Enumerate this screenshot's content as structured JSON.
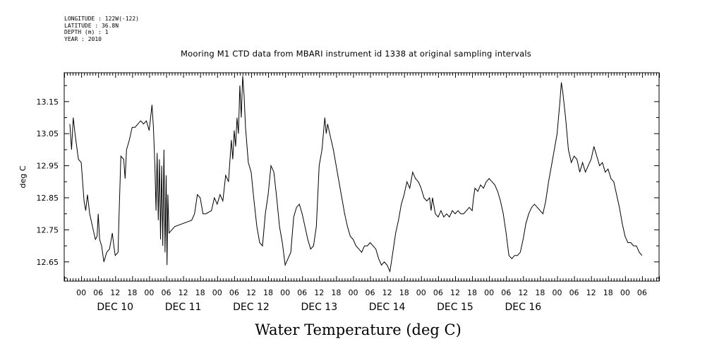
{
  "metadata": {
    "longitude": "LONGITUDE : 122W(-122)",
    "latitude": "LATITUDE : 36.8N",
    "depth": "DEPTH (m) : 1",
    "year": "YEAR : 2010"
  },
  "chart_data": {
    "type": "line",
    "title": "Mooring M1 CTD data from MBARI instrument id 1338 at original sampling intervals",
    "xlabel": "Water Temperature (deg C)",
    "ylabel": "deg C",
    "ylim": [
      12.59,
      13.24
    ],
    "xlim_hours": [
      -6,
      204
    ],
    "y_ticks": [
      12.65,
      12.75,
      12.85,
      12.95,
      13.05,
      13.15
    ],
    "y_tick_labels": [
      "12.65",
      "12.75",
      "12.85",
      "12.95",
      "13.05",
      "13.15"
    ],
    "hour_ticks": [
      "00",
      "06",
      "12",
      "18"
    ],
    "day_labels": [
      "DEC 10",
      "DEC 11",
      "DEC 12",
      "DEC 13",
      "DEC 14",
      "DEC 15",
      "DEC 16"
    ],
    "x_unit_note": "x = hours since 2010-12-10 00:00",
    "grid": false,
    "series": [
      {
        "color": "#000000",
        "points": [
          [
            -4.0,
            13.08
          ],
          [
            -3.4,
            13.0
          ],
          [
            -2.8,
            13.1
          ],
          [
            -2.2,
            13.05
          ],
          [
            -1.6,
            13.01
          ],
          [
            -1.0,
            12.97
          ],
          [
            0.0,
            12.96
          ],
          [
            1.0,
            12.84
          ],
          [
            1.6,
            12.81
          ],
          [
            2.2,
            12.86
          ],
          [
            3.0,
            12.8
          ],
          [
            4.0,
            12.76
          ],
          [
            5.0,
            12.72
          ],
          [
            5.6,
            12.73
          ],
          [
            6.0,
            12.8
          ],
          [
            6.5,
            12.72
          ],
          [
            7.2,
            12.7
          ],
          [
            8.0,
            12.65
          ],
          [
            9.0,
            12.68
          ],
          [
            10.0,
            12.69
          ],
          [
            11.0,
            12.74
          ],
          [
            11.5,
            12.7
          ],
          [
            12.0,
            12.67
          ],
          [
            13.0,
            12.68
          ],
          [
            13.3,
            12.78
          ],
          [
            14.0,
            12.98
          ],
          [
            15.0,
            12.97
          ],
          [
            15.5,
            12.91
          ],
          [
            16.0,
            13.0
          ],
          [
            17.0,
            13.03
          ],
          [
            18.0,
            13.07
          ],
          [
            19.0,
            13.07
          ],
          [
            20.0,
            13.08
          ],
          [
            21.0,
            13.09
          ],
          [
            22.0,
            13.08
          ],
          [
            23.0,
            13.09
          ],
          [
            24.0,
            13.06
          ],
          [
            25.0,
            13.14
          ],
          [
            25.5,
            13.07
          ],
          [
            26.0,
            12.95
          ],
          [
            26.4,
            12.81
          ],
          [
            26.8,
            12.99
          ],
          [
            27.2,
            12.78
          ],
          [
            27.6,
            12.97
          ],
          [
            28.0,
            12.72
          ],
          [
            28.4,
            12.95
          ],
          [
            28.8,
            12.7
          ],
          [
            29.2,
            13.0
          ],
          [
            29.6,
            12.68
          ],
          [
            30.0,
            12.92
          ],
          [
            30.3,
            12.64
          ],
          [
            30.6,
            12.86
          ],
          [
            31.0,
            12.74
          ],
          [
            32.0,
            12.75
          ],
          [
            33.0,
            12.76
          ],
          [
            39.0,
            12.78
          ],
          [
            40.0,
            12.8
          ],
          [
            41.0,
            12.86
          ],
          [
            42.0,
            12.85
          ],
          [
            43.0,
            12.8
          ],
          [
            44.0,
            12.8
          ],
          [
            46.0,
            12.81
          ],
          [
            47.0,
            12.85
          ],
          [
            48.0,
            12.83
          ],
          [
            49.0,
            12.86
          ],
          [
            50.0,
            12.84
          ],
          [
            51.0,
            12.92
          ],
          [
            52.0,
            12.9
          ],
          [
            53.0,
            13.03
          ],
          [
            53.5,
            12.97
          ],
          [
            54.0,
            13.06
          ],
          [
            54.5,
            13.01
          ],
          [
            55.0,
            13.1
          ],
          [
            55.5,
            13.05
          ],
          [
            56.0,
            13.2
          ],
          [
            56.5,
            13.1
          ],
          [
            57.0,
            13.23
          ],
          [
            57.5,
            13.17
          ],
          [
            58.0,
            13.07
          ],
          [
            59.0,
            12.96
          ],
          [
            60.0,
            12.93
          ],
          [
            61.0,
            12.84
          ],
          [
            62.0,
            12.76
          ],
          [
            63.0,
            12.71
          ],
          [
            64.0,
            12.7
          ],
          [
            65.0,
            12.8
          ],
          [
            66.0,
            12.86
          ],
          [
            67.0,
            12.95
          ],
          [
            68.0,
            12.93
          ],
          [
            69.0,
            12.85
          ],
          [
            70.0,
            12.76
          ],
          [
            71.0,
            12.71
          ],
          [
            72.0,
            12.64
          ],
          [
            73.0,
            12.66
          ],
          [
            74.0,
            12.68
          ],
          [
            75.0,
            12.79
          ],
          [
            76.0,
            12.82
          ],
          [
            77.0,
            12.83
          ],
          [
            78.0,
            12.8
          ],
          [
            79.0,
            12.76
          ],
          [
            80.0,
            12.72
          ],
          [
            81.0,
            12.69
          ],
          [
            82.0,
            12.7
          ],
          [
            83.0,
            12.76
          ],
          [
            84.0,
            12.95
          ],
          [
            85.0,
            13.0
          ],
          [
            86.0,
            13.1
          ],
          [
            86.5,
            13.05
          ],
          [
            87.0,
            13.08
          ],
          [
            88.0,
            13.04
          ],
          [
            89.0,
            13.0
          ],
          [
            90.0,
            12.95
          ],
          [
            91.0,
            12.9
          ],
          [
            92.0,
            12.85
          ],
          [
            93.0,
            12.8
          ],
          [
            94.0,
            12.76
          ],
          [
            95.0,
            12.73
          ],
          [
            96.0,
            12.72
          ],
          [
            97.0,
            12.7
          ],
          [
            98.0,
            12.69
          ],
          [
            99.0,
            12.68
          ],
          [
            100.0,
            12.7
          ],
          [
            101.0,
            12.7
          ],
          [
            102.0,
            12.71
          ],
          [
            103.0,
            12.7
          ],
          [
            104.0,
            12.69
          ],
          [
            105.0,
            12.66
          ],
          [
            106.0,
            12.64
          ],
          [
            107.0,
            12.65
          ],
          [
            108.0,
            12.64
          ],
          [
            109.0,
            12.62
          ],
          [
            110.0,
            12.68
          ],
          [
            111.0,
            12.74
          ],
          [
            112.0,
            12.78
          ],
          [
            113.0,
            12.83
          ],
          [
            114.0,
            12.86
          ],
          [
            115.0,
            12.9
          ],
          [
            116.0,
            12.88
          ],
          [
            117.0,
            12.93
          ],
          [
            118.0,
            12.91
          ],
          [
            119.0,
            12.9
          ],
          [
            120.0,
            12.88
          ],
          [
            121.0,
            12.85
          ],
          [
            122.0,
            12.84
          ],
          [
            123.0,
            12.85
          ],
          [
            123.5,
            12.81
          ],
          [
            124.0,
            12.85
          ],
          [
            125.0,
            12.8
          ],
          [
            126.0,
            12.79
          ],
          [
            127.0,
            12.81
          ],
          [
            128.0,
            12.79
          ],
          [
            129.0,
            12.8
          ],
          [
            130.0,
            12.79
          ],
          [
            131.0,
            12.81
          ],
          [
            132.0,
            12.8
          ],
          [
            133.0,
            12.81
          ],
          [
            134.0,
            12.8
          ],
          [
            135.0,
            12.8
          ],
          [
            136.0,
            12.81
          ],
          [
            137.0,
            12.82
          ],
          [
            138.0,
            12.81
          ],
          [
            138.5,
            12.85
          ],
          [
            139.0,
            12.88
          ],
          [
            140.0,
            12.87
          ],
          [
            141.0,
            12.89
          ],
          [
            142.0,
            12.88
          ],
          [
            143.0,
            12.9
          ],
          [
            144.0,
            12.91
          ],
          [
            145.0,
            12.9
          ],
          [
            146.0,
            12.89
          ],
          [
            147.0,
            12.87
          ],
          [
            148.0,
            12.84
          ],
          [
            149.0,
            12.8
          ],
          [
            150.0,
            12.74
          ],
          [
            151.0,
            12.67
          ],
          [
            152.0,
            12.66
          ],
          [
            153.0,
            12.67
          ],
          [
            154.0,
            12.67
          ],
          [
            155.0,
            12.68
          ],
          [
            156.0,
            12.72
          ],
          [
            157.0,
            12.77
          ],
          [
            158.0,
            12.8
          ],
          [
            159.0,
            12.82
          ],
          [
            160.0,
            12.83
          ],
          [
            161.0,
            12.82
          ],
          [
            162.0,
            12.81
          ],
          [
            163.0,
            12.8
          ],
          [
            164.0,
            12.84
          ],
          [
            165.0,
            12.9
          ],
          [
            166.0,
            12.95
          ],
          [
            167.0,
            13.0
          ],
          [
            168.0,
            13.05
          ],
          [
            169.0,
            13.15
          ],
          [
            169.5,
            13.21
          ],
          [
            170.0,
            13.18
          ],
          [
            171.0,
            13.1
          ],
          [
            172.0,
            13.0
          ],
          [
            173.0,
            12.96
          ],
          [
            174.0,
            12.98
          ],
          [
            175.0,
            12.97
          ],
          [
            176.0,
            12.93
          ],
          [
            177.0,
            12.96
          ],
          [
            178.0,
            12.93
          ],
          [
            179.0,
            12.95
          ],
          [
            180.0,
            12.97
          ],
          [
            181.0,
            13.01
          ],
          [
            182.0,
            12.98
          ],
          [
            183.0,
            12.95
          ],
          [
            184.0,
            12.96
          ],
          [
            185.0,
            12.93
          ],
          [
            186.0,
            12.94
          ],
          [
            187.0,
            12.91
          ],
          [
            188.0,
            12.9
          ],
          [
            189.0,
            12.86
          ],
          [
            190.0,
            12.82
          ],
          [
            191.0,
            12.77
          ],
          [
            192.0,
            12.73
          ],
          [
            193.0,
            12.71
          ],
          [
            194.0,
            12.71
          ],
          [
            195.0,
            12.7
          ],
          [
            196.0,
            12.7
          ],
          [
            197.0,
            12.68
          ],
          [
            198.0,
            12.67
          ]
        ]
      }
    ]
  }
}
